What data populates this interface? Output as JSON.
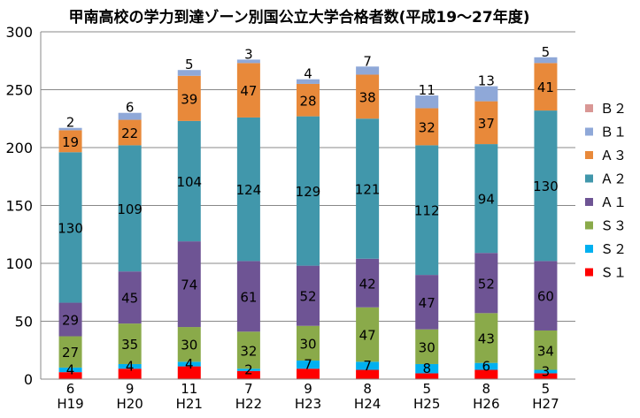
{
  "chart_data": {
    "type": "bar",
    "stacked": true,
    "title": "甲南高校の学力到達ゾーン別国公立大学合格者数(平成19～27年度)",
    "categories": [
      "H19",
      "H20",
      "H21",
      "H22",
      "H23",
      "H24",
      "H25",
      "H26",
      "H27"
    ],
    "y_ticks": [
      "0",
      "50",
      "100",
      "150",
      "200",
      "250",
      "300"
    ],
    "ylim": [
      0,
      300
    ],
    "grid": true,
    "legend_position": "right",
    "series": [
      {
        "name": "Ｓ１",
        "color": "#ff0000",
        "values": [
          6,
          9,
          11,
          7,
          9,
          8,
          5,
          8,
          5
        ],
        "labels": [
          "6",
          "9",
          "11",
          "7",
          "9",
          "8",
          "5",
          "8",
          "5"
        ]
      },
      {
        "name": "Ｓ２",
        "color": "#00b0f0",
        "values": [
          4,
          4,
          4,
          2,
          7,
          7,
          8,
          6,
          3
        ],
        "labels": [
          "4",
          "4",
          "4",
          "2",
          "7",
          "7",
          "8",
          "6",
          "3"
        ]
      },
      {
        "name": "Ｓ３",
        "color": "#8aaa4a",
        "values": [
          27,
          35,
          30,
          32,
          30,
          47,
          30,
          43,
          34
        ],
        "labels": [
          "27",
          "35",
          "30",
          "32",
          "30",
          "47",
          "30",
          "43",
          "34"
        ]
      },
      {
        "name": "Ａ１",
        "color": "#6e5494",
        "values": [
          29,
          45,
          74,
          61,
          52,
          42,
          47,
          52,
          60
        ],
        "labels": [
          "29",
          "45",
          "74",
          "61",
          "52",
          "42",
          "47",
          "52",
          "60"
        ]
      },
      {
        "name": "Ａ２",
        "color": "#4197ab",
        "values": [
          130,
          109,
          104,
          124,
          129,
          121,
          112,
          94,
          130
        ],
        "labels": [
          "130",
          "109",
          "104",
          "124",
          "129",
          "121",
          "112",
          "94",
          "130"
        ]
      },
      {
        "name": "Ａ３",
        "color": "#e8893a",
        "values": [
          19,
          22,
          39,
          47,
          28,
          38,
          32,
          37,
          41
        ],
        "labels": [
          "19",
          "22",
          "39",
          "47",
          "28",
          "38",
          "32",
          "37",
          "41"
        ]
      },
      {
        "name": "Ｂ１",
        "color": "#8fa8d8",
        "values": [
          2,
          6,
          5,
          3,
          4,
          7,
          11,
          13,
          5
        ],
        "labels": [
          "2",
          "6",
          "5",
          "3",
          "4",
          "7",
          "11",
          "13",
          "5"
        ]
      },
      {
        "name": "Ｂ２",
        "color": "#d99795",
        "values": [
          0,
          0,
          0,
          0,
          0,
          0,
          0,
          0,
          0
        ],
        "labels": [
          "",
          "",
          "",
          "",
          "",
          "",
          "",
          "",
          ""
        ]
      }
    ]
  }
}
